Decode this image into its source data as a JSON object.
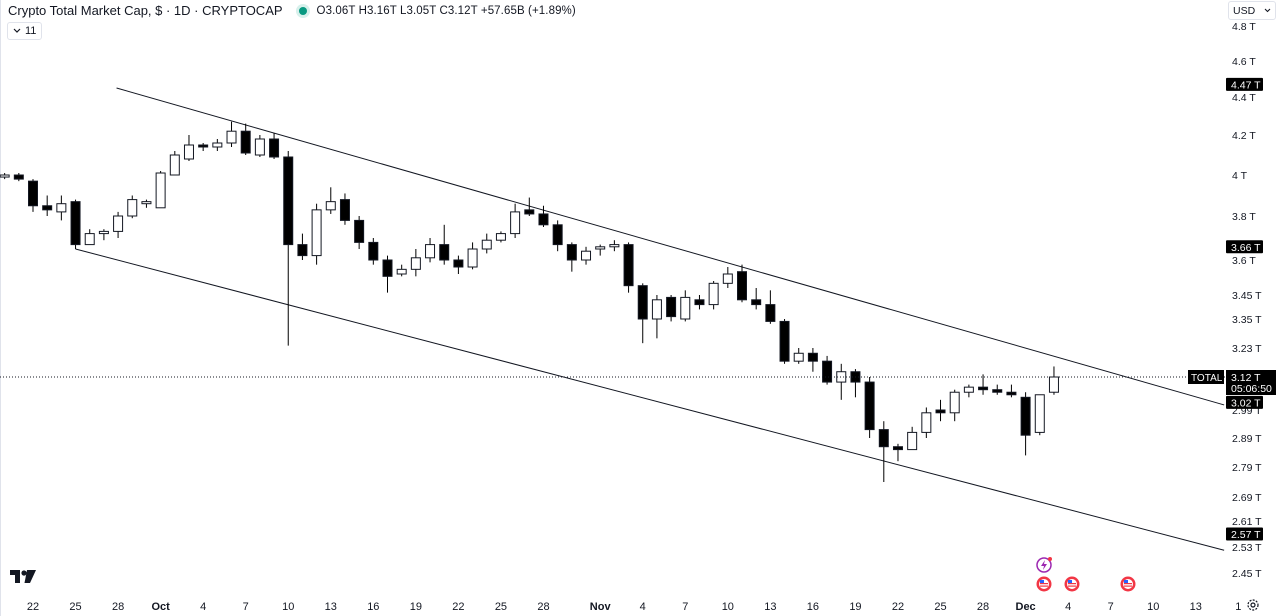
{
  "header": {
    "title": "Crypto Total Market Cap, $ · 1D · CRYPTOCAP",
    "ohlc": "O3.06T H3.16T L3.05T C3.12T +57.65B (+1.89%)",
    "indicator_count": "11"
  },
  "currency": {
    "label": "USD"
  },
  "colors": {
    "up_body": "#ffffff",
    "down_body": "#000000",
    "wick": "#000000",
    "live_dot": "#089981"
  },
  "icons": {
    "logo": "tradingview-logo-icon",
    "settings": "gear-icon",
    "events": [
      "lightning-icon",
      "us-flag-icon",
      "us-flag-icon",
      "us-flag-icon"
    ]
  },
  "chart_data": {
    "type": "candlestick",
    "y_axis": {
      "ticks": [
        4.8,
        4.6,
        4.4,
        4.2,
        4.0,
        3.8,
        3.6,
        3.45,
        3.35,
        3.23,
        2.99,
        2.89,
        2.79,
        2.69,
        2.61,
        2.53,
        2.45
      ],
      "tick_labels": [
        "4.8 T",
        "4.6 T",
        "4.4 T",
        "4.2 T",
        "4 T",
        "3.8 T",
        "3.6 T",
        "3.45 T",
        "3.35 T",
        "3.23 T",
        "2.99 T",
        "2.89 T",
        "2.79 T",
        "2.69 T",
        "2.61 T",
        "2.53 T",
        "2.45 T"
      ],
      "badges": [
        {
          "value": 4.47,
          "label": "4.47 T"
        },
        {
          "value": 3.66,
          "label": "3.66 T"
        },
        {
          "value": 3.02,
          "label": "3.02 T"
        },
        {
          "value": 2.57,
          "label": "2.57 T"
        }
      ],
      "current": {
        "value": 3.12,
        "label": "3.12 T",
        "countdown": "05:06:50",
        "symbol": "TOTAL"
      }
    },
    "x_axis": {
      "labels": [
        {
          "day": 0,
          "text": "22"
        },
        {
          "day": 3,
          "text": "25"
        },
        {
          "day": 6,
          "text": "28"
        },
        {
          "day": 9,
          "text": "Oct",
          "bold": true
        },
        {
          "day": 12,
          "text": "4"
        },
        {
          "day": 15,
          "text": "7"
        },
        {
          "day": 18,
          "text": "10"
        },
        {
          "day": 21,
          "text": "13"
        },
        {
          "day": 24,
          "text": "16"
        },
        {
          "day": 27,
          "text": "19"
        },
        {
          "day": 30,
          "text": "22"
        },
        {
          "day": 33,
          "text": "25"
        },
        {
          "day": 36,
          "text": "28"
        },
        {
          "day": 40,
          "text": "Nov",
          "bold": true
        },
        {
          "day": 43,
          "text": "4"
        },
        {
          "day": 46,
          "text": "7"
        },
        {
          "day": 49,
          "text": "10"
        },
        {
          "day": 52,
          "text": "13"
        },
        {
          "day": 55,
          "text": "16"
        },
        {
          "day": 58,
          "text": "19"
        },
        {
          "day": 61,
          "text": "22"
        },
        {
          "day": 64,
          "text": "25"
        },
        {
          "day": 67,
          "text": "28"
        },
        {
          "day": 70,
          "text": "Dec",
          "bold": true
        },
        {
          "day": 73,
          "text": "4"
        },
        {
          "day": 76,
          "text": "7"
        },
        {
          "day": 79,
          "text": "10"
        },
        {
          "day": 82,
          "text": "13"
        },
        {
          "day": 85,
          "text": "1"
        }
      ]
    },
    "candles": [
      {
        "d": -2,
        "o": 3.99,
        "h": 4.01,
        "l": 3.98,
        "c": 4.0
      },
      {
        "d": -1,
        "o": 4.0,
        "h": 4.01,
        "l": 3.97,
        "c": 3.98
      },
      {
        "d": 0,
        "o": 3.97,
        "h": 3.98,
        "l": 3.82,
        "c": 3.85
      },
      {
        "d": 1,
        "o": 3.85,
        "h": 3.9,
        "l": 3.8,
        "c": 3.83
      },
      {
        "d": 2,
        "o": 3.82,
        "h": 3.9,
        "l": 3.78,
        "c": 3.86
      },
      {
        "d": 3,
        "o": 3.87,
        "h": 3.88,
        "l": 3.65,
        "c": 3.67
      },
      {
        "d": 4,
        "o": 3.67,
        "h": 3.74,
        "l": 3.67,
        "c": 3.72
      },
      {
        "d": 5,
        "o": 3.72,
        "h": 3.74,
        "l": 3.69,
        "c": 3.73
      },
      {
        "d": 6,
        "o": 3.73,
        "h": 3.82,
        "l": 3.7,
        "c": 3.8
      },
      {
        "d": 7,
        "o": 3.8,
        "h": 3.9,
        "l": 3.79,
        "c": 3.88
      },
      {
        "d": 8,
        "o": 3.86,
        "h": 3.88,
        "l": 3.84,
        "c": 3.87
      },
      {
        "d": 9,
        "o": 3.84,
        "h": 4.02,
        "l": 3.84,
        "c": 4.01
      },
      {
        "d": 10,
        "o": 4.0,
        "h": 4.12,
        "l": 4.0,
        "c": 4.1
      },
      {
        "d": 11,
        "o": 4.08,
        "h": 4.2,
        "l": 4.07,
        "c": 4.15
      },
      {
        "d": 12,
        "o": 4.15,
        "h": 4.16,
        "l": 4.12,
        "c": 4.14
      },
      {
        "d": 13,
        "o": 4.14,
        "h": 4.18,
        "l": 4.12,
        "c": 4.16
      },
      {
        "d": 14,
        "o": 4.16,
        "h": 4.27,
        "l": 4.14,
        "c": 4.22
      },
      {
        "d": 15,
        "o": 4.22,
        "h": 4.26,
        "l": 4.1,
        "c": 4.11
      },
      {
        "d": 16,
        "o": 4.1,
        "h": 4.2,
        "l": 4.09,
        "c": 4.18
      },
      {
        "d": 17,
        "o": 4.18,
        "h": 4.21,
        "l": 4.08,
        "c": 4.09
      },
      {
        "d": 18,
        "o": 4.09,
        "h": 4.12,
        "l": 3.24,
        "c": 3.67
      },
      {
        "d": 19,
        "o": 3.67,
        "h": 3.72,
        "l": 3.6,
        "c": 3.62
      },
      {
        "d": 20,
        "o": 3.62,
        "h": 3.86,
        "l": 3.58,
        "c": 3.83
      },
      {
        "d": 21,
        "o": 3.83,
        "h": 3.94,
        "l": 3.81,
        "c": 3.87
      },
      {
        "d": 22,
        "o": 3.88,
        "h": 3.91,
        "l": 3.76,
        "c": 3.78
      },
      {
        "d": 23,
        "o": 3.78,
        "h": 3.8,
        "l": 3.65,
        "c": 3.68
      },
      {
        "d": 24,
        "o": 3.68,
        "h": 3.7,
        "l": 3.58,
        "c": 3.6
      },
      {
        "d": 25,
        "o": 3.6,
        "h": 3.62,
        "l": 3.46,
        "c": 3.53
      },
      {
        "d": 26,
        "o": 3.54,
        "h": 3.58,
        "l": 3.53,
        "c": 3.56
      },
      {
        "d": 27,
        "o": 3.56,
        "h": 3.65,
        "l": 3.53,
        "c": 3.61
      },
      {
        "d": 28,
        "o": 3.61,
        "h": 3.7,
        "l": 3.59,
        "c": 3.67
      },
      {
        "d": 29,
        "o": 3.67,
        "h": 3.76,
        "l": 3.58,
        "c": 3.6
      },
      {
        "d": 30,
        "o": 3.6,
        "h": 3.62,
        "l": 3.54,
        "c": 3.57
      },
      {
        "d": 31,
        "o": 3.57,
        "h": 3.68,
        "l": 3.56,
        "c": 3.65
      },
      {
        "d": 32,
        "o": 3.65,
        "h": 3.72,
        "l": 3.63,
        "c": 3.69
      },
      {
        "d": 33,
        "o": 3.69,
        "h": 3.73,
        "l": 3.68,
        "c": 3.72
      },
      {
        "d": 34,
        "o": 3.72,
        "h": 3.86,
        "l": 3.7,
        "c": 3.82
      },
      {
        "d": 35,
        "o": 3.83,
        "h": 3.89,
        "l": 3.8,
        "c": 3.81
      },
      {
        "d": 36,
        "o": 3.81,
        "h": 3.85,
        "l": 3.75,
        "c": 3.76
      },
      {
        "d": 37,
        "o": 3.76,
        "h": 3.78,
        "l": 3.64,
        "c": 3.67
      },
      {
        "d": 38,
        "o": 3.67,
        "h": 3.68,
        "l": 3.55,
        "c": 3.6
      },
      {
        "d": 39,
        "o": 3.6,
        "h": 3.66,
        "l": 3.58,
        "c": 3.64
      },
      {
        "d": 40,
        "o": 3.65,
        "h": 3.67,
        "l": 3.62,
        "c": 3.66
      },
      {
        "d": 41,
        "o": 3.66,
        "h": 3.69,
        "l": 3.64,
        "c": 3.67
      },
      {
        "d": 42,
        "o": 3.67,
        "h": 3.68,
        "l": 3.46,
        "c": 3.49
      },
      {
        "d": 43,
        "o": 3.49,
        "h": 3.5,
        "l": 3.25,
        "c": 3.35
      },
      {
        "d": 44,
        "o": 3.35,
        "h": 3.45,
        "l": 3.27,
        "c": 3.43
      },
      {
        "d": 45,
        "o": 3.44,
        "h": 3.45,
        "l": 3.34,
        "c": 3.36
      },
      {
        "d": 46,
        "o": 3.35,
        "h": 3.47,
        "l": 3.34,
        "c": 3.44
      },
      {
        "d": 47,
        "o": 3.43,
        "h": 3.45,
        "l": 3.39,
        "c": 3.41
      },
      {
        "d": 48,
        "o": 3.41,
        "h": 3.51,
        "l": 3.39,
        "c": 3.5
      },
      {
        "d": 49,
        "o": 3.5,
        "h": 3.57,
        "l": 3.48,
        "c": 3.54
      },
      {
        "d": 50,
        "o": 3.55,
        "h": 3.58,
        "l": 3.42,
        "c": 3.43
      },
      {
        "d": 51,
        "o": 3.43,
        "h": 3.48,
        "l": 3.39,
        "c": 3.41
      },
      {
        "d": 52,
        "o": 3.41,
        "h": 3.47,
        "l": 3.33,
        "c": 3.34
      },
      {
        "d": 53,
        "o": 3.34,
        "h": 3.35,
        "l": 3.17,
        "c": 3.18
      },
      {
        "d": 54,
        "o": 3.18,
        "h": 3.23,
        "l": 3.17,
        "c": 3.21
      },
      {
        "d": 55,
        "o": 3.21,
        "h": 3.23,
        "l": 3.14,
        "c": 3.18
      },
      {
        "d": 56,
        "o": 3.18,
        "h": 3.2,
        "l": 3.09,
        "c": 3.1
      },
      {
        "d": 57,
        "o": 3.1,
        "h": 3.17,
        "l": 3.03,
        "c": 3.14
      },
      {
        "d": 58,
        "o": 3.14,
        "h": 3.15,
        "l": 3.04,
        "c": 3.1
      },
      {
        "d": 59,
        "o": 3.1,
        "h": 3.12,
        "l": 2.89,
        "c": 2.92
      },
      {
        "d": 60,
        "o": 2.92,
        "h": 2.95,
        "l": 2.74,
        "c": 2.86
      },
      {
        "d": 61,
        "o": 2.86,
        "h": 2.87,
        "l": 2.81,
        "c": 2.85
      },
      {
        "d": 62,
        "o": 2.85,
        "h": 2.93,
        "l": 2.85,
        "c": 2.91
      },
      {
        "d": 63,
        "o": 2.91,
        "h": 3.0,
        "l": 2.89,
        "c": 2.98
      },
      {
        "d": 64,
        "o": 2.99,
        "h": 3.03,
        "l": 2.95,
        "c": 2.98
      },
      {
        "d": 65,
        "o": 2.98,
        "h": 3.07,
        "l": 2.95,
        "c": 3.06
      },
      {
        "d": 66,
        "o": 3.06,
        "h": 3.09,
        "l": 3.04,
        "c": 3.08
      },
      {
        "d": 67,
        "o": 3.08,
        "h": 3.13,
        "l": 3.05,
        "c": 3.07
      },
      {
        "d": 68,
        "o": 3.07,
        "h": 3.09,
        "l": 3.05,
        "c": 3.06
      },
      {
        "d": 69,
        "o": 3.06,
        "h": 3.09,
        "l": 3.04,
        "c": 3.05
      },
      {
        "d": 70,
        "o": 3.04,
        "h": 3.06,
        "l": 2.83,
        "c": 2.9
      },
      {
        "d": 71,
        "o": 2.91,
        "h": 3.05,
        "l": 2.9,
        "c": 3.05
      },
      {
        "d": 72,
        "o": 3.06,
        "h": 3.16,
        "l": 3.05,
        "c": 3.12
      }
    ],
    "trendlines": [
      {
        "name": "upper-channel",
        "d1": 3,
        "v1": 4.45,
        "d2": 84,
        "v2": 3.01
      },
      {
        "name": "lower-channel",
        "d1": 3,
        "v1": 3.65,
        "d2": 84,
        "v2": 2.52
      }
    ]
  }
}
